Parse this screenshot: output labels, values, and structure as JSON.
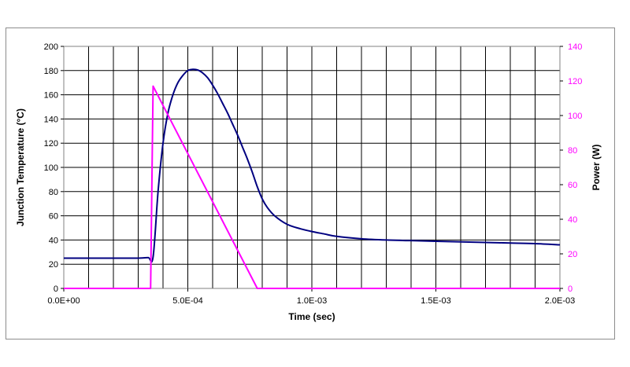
{
  "chart_data": {
    "type": "line",
    "xlabel": "Time (sec)",
    "ylabel": "Junction Temperature (°C)",
    "y2label": "Power (W)",
    "xlim": [
      0,
      0.002
    ],
    "ylim": [
      0,
      200
    ],
    "y2lim": [
      0,
      140
    ],
    "x_ticks": [
      0,
      0.0005,
      0.001,
      0.0015,
      0.002
    ],
    "x_tick_labels": [
      "0.0E+00",
      "5.0E-04",
      "1.0E-03",
      "1.5E-03",
      "2.0E-03"
    ],
    "y_ticks": [
      0,
      20,
      40,
      60,
      80,
      100,
      120,
      140,
      160,
      180,
      200
    ],
    "y_tick_labels": [
      "0",
      "20",
      "40",
      "60",
      "80",
      "100",
      "120",
      "140",
      "160",
      "180",
      "200"
    ],
    "y2_ticks": [
      0,
      20,
      40,
      60,
      80,
      100,
      120,
      140
    ],
    "y2_tick_labels": [
      "0",
      "20",
      "40",
      "60",
      "80",
      "100",
      "120",
      "140"
    ],
    "grid": true,
    "grid_x_step": 0.0001,
    "grid_y_step": 20,
    "series": [
      {
        "axis": "left",
        "color": "#000080",
        "x": [
          0,
          0.0001,
          0.0002,
          0.0003,
          0.00034,
          0.00036,
          0.00038,
          0.0004,
          0.00042,
          0.00044,
          0.00046,
          0.00048,
          0.0005,
          0.00052,
          0.00054,
          0.00056,
          0.00058,
          0.0006,
          0.00062,
          0.00064,
          0.00066,
          0.00068,
          0.0007,
          0.00072,
          0.00074,
          0.00076,
          0.00078,
          0.0008,
          0.00082,
          0.00085,
          0.0009,
          0.00095,
          0.001,
          0.00105,
          0.0011,
          0.0012,
          0.0013,
          0.0014,
          0.0015,
          0.0016,
          0.0017,
          0.0018,
          0.0019,
          0.002
        ],
        "y": [
          25,
          25,
          25,
          25,
          25.5,
          26,
          80,
          120,
          145,
          160,
          170,
          176,
          180,
          181,
          180.5,
          178,
          174,
          168,
          161,
          153,
          145,
          136,
          127,
          117,
          107,
          96,
          84,
          74,
          67,
          60,
          53,
          49.5,
          47,
          45,
          43,
          41,
          40,
          39.5,
          39,
          38.5,
          38,
          37.5,
          37,
          36
        ]
      },
      {
        "axis": "right",
        "color": "#ff00ff",
        "x": [
          0,
          0.00035,
          0.00036,
          0.00078,
          0.00079,
          0.002
        ],
        "y": [
          0,
          0,
          117,
          0,
          0,
          0
        ]
      }
    ]
  }
}
